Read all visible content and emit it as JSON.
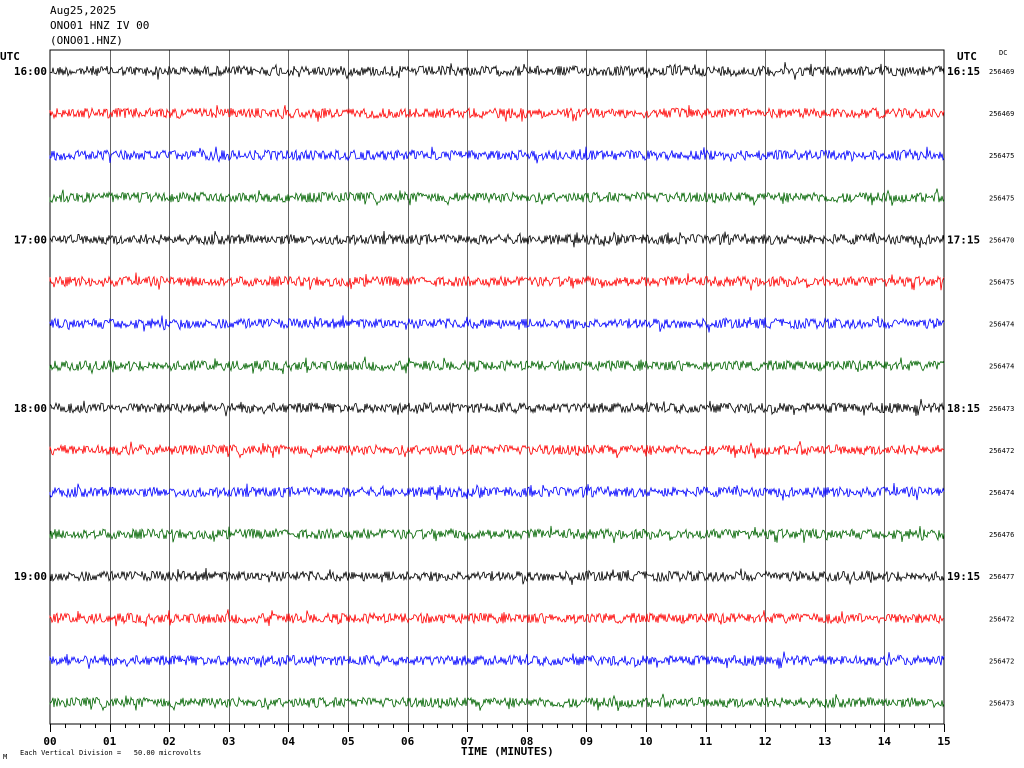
{
  "header": {
    "date": "Aug25,2025",
    "station": "ONO01 HNZ IV 00",
    "channel": "(ONO01.HNZ)"
  },
  "left_tz_label": "UTC",
  "right_tz_label": "UTC",
  "dc_label": "DC",
  "footer": {
    "xlabel": "TIME (MINUTES)",
    "scale_note": "Each Vertical Division =   50.00 microvolts",
    "corner_mark": "M"
  },
  "trace_colors": [
    "#000000",
    "#ff0000",
    "#0000ff",
    "#006400"
  ],
  "chart_data": {
    "type": "line",
    "description_kind": "helicorder",
    "xlabel": "TIME (MINUTES)",
    "xlim": [
      0,
      15
    ],
    "x_ticks": [
      "00",
      "01",
      "02",
      "03",
      "04",
      "05",
      "06",
      "07",
      "08",
      "09",
      "10",
      "11",
      "12",
      "13",
      "14",
      "15"
    ],
    "rows": [
      {
        "left": "16:00",
        "right": "16:15",
        "dc": "256469",
        "color": "#000000"
      },
      {
        "left": "",
        "right": "",
        "dc": "256469",
        "color": "#ff0000"
      },
      {
        "left": "",
        "right": "",
        "dc": "256475",
        "color": "#0000ff"
      },
      {
        "left": "",
        "right": "",
        "dc": "256475",
        "color": "#006400"
      },
      {
        "left": "17:00",
        "right": "17:15",
        "dc": "256470",
        "color": "#000000"
      },
      {
        "left": "",
        "right": "",
        "dc": "256475",
        "color": "#ff0000"
      },
      {
        "left": "",
        "right": "",
        "dc": "256474",
        "color": "#0000ff"
      },
      {
        "left": "",
        "right": "",
        "dc": "256474",
        "color": "#006400"
      },
      {
        "left": "18:00",
        "right": "18:15",
        "dc": "256473",
        "color": "#000000"
      },
      {
        "left": "",
        "right": "",
        "dc": "256472",
        "color": "#ff0000"
      },
      {
        "left": "",
        "right": "",
        "dc": "256474",
        "color": "#0000ff"
      },
      {
        "left": "",
        "right": "",
        "dc": "256476",
        "color": "#006400"
      },
      {
        "left": "19:00",
        "right": "19:15",
        "dc": "256477",
        "color": "#000000"
      },
      {
        "left": "",
        "right": "",
        "dc": "256472",
        "color": "#ff0000"
      },
      {
        "left": "",
        "right": "",
        "dc": "256472",
        "color": "#0000ff"
      },
      {
        "left": "",
        "right": "",
        "dc": "256473",
        "color": "#006400"
      }
    ]
  }
}
